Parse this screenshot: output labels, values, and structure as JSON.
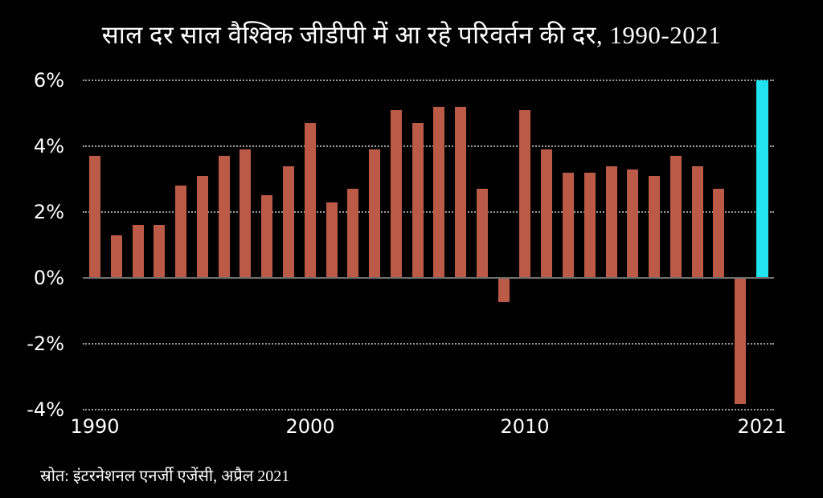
{
  "chart_data": {
    "type": "bar",
    "title": "साल दर साल वैश्विक जीडीपी में आ रहे परिवर्तन की दर, 1990-2021",
    "source": "स्रोत: इंटरनेशनल एनर्जी एजेंसी, अप्रैल 2021",
    "ylabel": "",
    "xlabel": "",
    "categories": [
      1990,
      1991,
      1992,
      1993,
      1994,
      1995,
      1996,
      1997,
      1998,
      1999,
      2000,
      2001,
      2002,
      2003,
      2004,
      2005,
      2006,
      2007,
      2008,
      2009,
      2010,
      2011,
      2012,
      2013,
      2014,
      2015,
      2016,
      2017,
      2018,
      2019,
      2020,
      2021
    ],
    "values": [
      3.7,
      1.3,
      1.6,
      1.6,
      2.8,
      3.1,
      3.7,
      3.9,
      2.5,
      3.4,
      4.7,
      2.3,
      2.7,
      3.9,
      5.1,
      4.7,
      5.2,
      5.2,
      2.7,
      -0.7,
      5.1,
      3.9,
      3.2,
      3.2,
      3.4,
      3.3,
      3.1,
      3.7,
      3.4,
      2.7,
      -3.8,
      6.0
    ],
    "unit": "%",
    "ylim": [
      -4,
      6
    ],
    "yticks": [
      6,
      4,
      2,
      0,
      -2,
      -4
    ],
    "ytick_labels": [
      "6%",
      "4%",
      "2%",
      "0%",
      "-2%",
      "-4%"
    ],
    "xtick_years": [
      1990,
      2000,
      2010,
      2021
    ],
    "xtick_labels": [
      "1990",
      "2000",
      "2010",
      "2021"
    ],
    "grid": "horizontal-dotted",
    "legend": "none",
    "bar_color": "#BC5A48",
    "highlight_year": 2021,
    "highlight_color": "#22E4F0",
    "background_color": "#000000",
    "text_color": "#ffffff"
  }
}
